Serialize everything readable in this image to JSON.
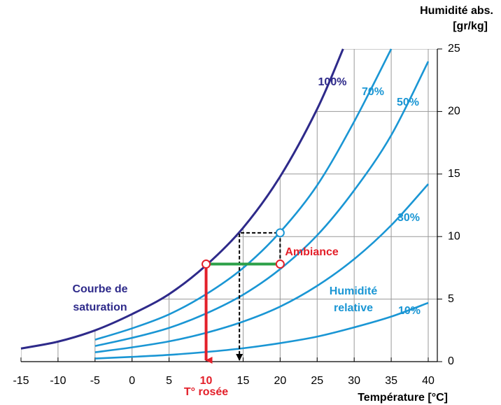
{
  "chart_data": {
    "type": "line",
    "y_axis_title": [
      "Humidité abs.",
      "[gr/kg]"
    ],
    "x_axis_title": "Température [°C]",
    "xlim": [
      -15,
      40
    ],
    "ylim": [
      0,
      25
    ],
    "xticks": [
      -15,
      -10,
      -5,
      0,
      5,
      10,
      15,
      20,
      25,
      30,
      35,
      40
    ],
    "yticks": [
      0,
      5,
      10,
      15,
      20,
      25
    ],
    "grid": true,
    "series": [
      {
        "name": "100%",
        "color": "#2e2a8a",
        "x": [
          -15,
          -10,
          -5,
          0,
          5,
          10,
          15,
          20,
          25,
          28.5
        ],
        "values": [
          1.05,
          1.6,
          2.5,
          3.8,
          5.4,
          7.7,
          10.7,
          14.8,
          20.2,
          25
        ]
      },
      {
        "name": "70%",
        "color": "#1a96d4",
        "x": [
          -5,
          0,
          5,
          10,
          15,
          20,
          25,
          30,
          35
        ],
        "values": [
          1.75,
          2.66,
          3.78,
          5.39,
          7.49,
          10.36,
          14.1,
          19.2,
          25
        ]
      },
      {
        "name": "50%",
        "color": "#1a96d4",
        "x": [
          -5,
          0,
          5,
          10,
          15,
          20,
          25,
          30,
          35,
          40
        ],
        "values": [
          1.25,
          1.9,
          2.7,
          3.85,
          5.35,
          7.4,
          10.1,
          13.7,
          18.1,
          24
        ]
      },
      {
        "name": "30%",
        "color": "#1a96d4",
        "x": [
          -5,
          0,
          5,
          10,
          15,
          20,
          25,
          30,
          35,
          40
        ],
        "values": [
          0.75,
          1.14,
          1.62,
          2.3,
          3.2,
          4.4,
          6.06,
          8.2,
          10.9,
          14.2
        ]
      },
      {
        "name": "10%",
        "color": "#1a96d4",
        "x": [
          -5,
          0,
          5,
          10,
          15,
          20,
          25,
          30,
          35,
          40
        ],
        "values": [
          0.25,
          0.38,
          0.54,
          0.77,
          1.07,
          1.48,
          2.0,
          2.74,
          3.6,
          4.7
        ]
      }
    ],
    "dew_point": {
      "x": 10,
      "y": 7.8,
      "color": "#e3202a",
      "label": "T° rosée"
    },
    "ambient": {
      "x": 20,
      "y": 7.8,
      "color": "#e3202a",
      "label": "Ambiance"
    },
    "ambient_saturated": {
      "x": 20,
      "y": 10.3,
      "color": "#1a96d4"
    },
    "projection": {
      "x": 14.5,
      "y": 10.3
    },
    "cooling_line_color": "#2ca048",
    "annotations": {
      "saturation": [
        "Courbe de",
        "saturation"
      ],
      "relative": [
        "Humidité",
        "relative"
      ]
    }
  }
}
